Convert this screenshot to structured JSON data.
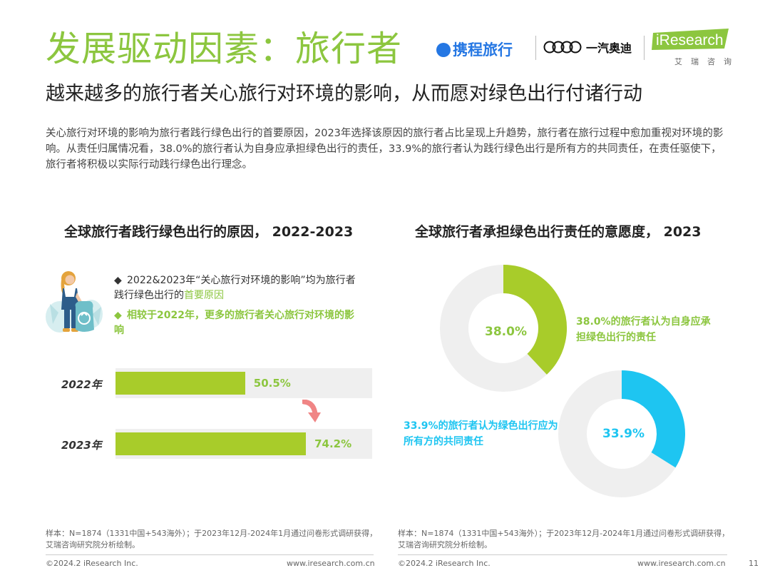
{
  "header": {
    "title": "发展驱动因素：旅行者",
    "subtitle": "越来越多的旅行者关心旅行对环境的影响，从而愿对绿色出行付诸行动",
    "body": "关心旅行对环境的影响为旅行者践行绿色出行的首要原因，2023年选择该原因的旅行者占比呈现上升趋势，旅行者在旅行过程中愈加重视对环境的影响。从责任归属情况看，38.0%的旅行者认为自身应承担绿色出行的责任，33.9%的旅行者认为践行绿色出行是所有方的共同责任，在责任驱使下，旅行者将积极以实际行动践行绿色出行理念。"
  },
  "logos": {
    "ctrip": "携程旅行",
    "faw_audi": "一汽奥迪",
    "iresearch": "iResearch",
    "iresearch_cn": "艾瑞咨询"
  },
  "colors": {
    "green": "#8cc63f",
    "bar_green": "#a8cc2a",
    "blue": "#1ec5f1",
    "track": "#efefef",
    "arrow": "#f08585"
  },
  "notes": {
    "bullet1_icon": "diamond-bullet-icon",
    "bullet1_prefix": "2022&2023年“关心旅行对环境的影响”均为旅行者践行绿色出行的",
    "bullet1_highlight": "首要原因",
    "bullet2_icon": "diamond-bullet-icon",
    "bullet2": "相较于2022年，更多的旅行者关心旅行对环境的影响"
  },
  "chart_data": [
    {
      "type": "bar",
      "orientation": "horizontal",
      "title": "全球旅行者践行绿色出行的原因， 2022-2023",
      "categories": [
        "2022年",
        "2023年"
      ],
      "values": [
        50.5,
        74.2
      ],
      "value_labels": [
        "50.5%",
        "74.2%"
      ],
      "xlim": [
        0,
        100
      ],
      "unit": "%"
    },
    {
      "type": "pie",
      "title": "全球旅行者承担绿色出行责任的意愿度， 2023",
      "slices": [
        {
          "name": "38.0%的旅行者认为自身应承担绿色出行的责任",
          "value": 38.0,
          "label": "38.0%",
          "color": "#a8cc2a"
        },
        {
          "name": "33.9%的旅行者认为绿色出行应为所有方的共同责任",
          "value": 33.9,
          "label": "33.9%",
          "color": "#1ec5f1"
        }
      ]
    }
  ],
  "footer": {
    "footnote_left": "样本：N=1874（1331中国+543海外）；于2023年12月-2024年1月通过问卷形式调研获得，艾瑞咨询研究院分析绘制。",
    "footnote_right": "样本：N=1874（1331中国+543海外）；于2023年12月-2024年1月通过问卷形式调研获得，艾瑞咨询研究院分析绘制。",
    "copyright_left": "©2024.2 iResearch Inc.",
    "url_left": "www.iresearch.com.cn",
    "copyright_right": "©2024.2 iResearch Inc.",
    "url_right": "www.iresearch.com.cn",
    "page_number": "11"
  }
}
